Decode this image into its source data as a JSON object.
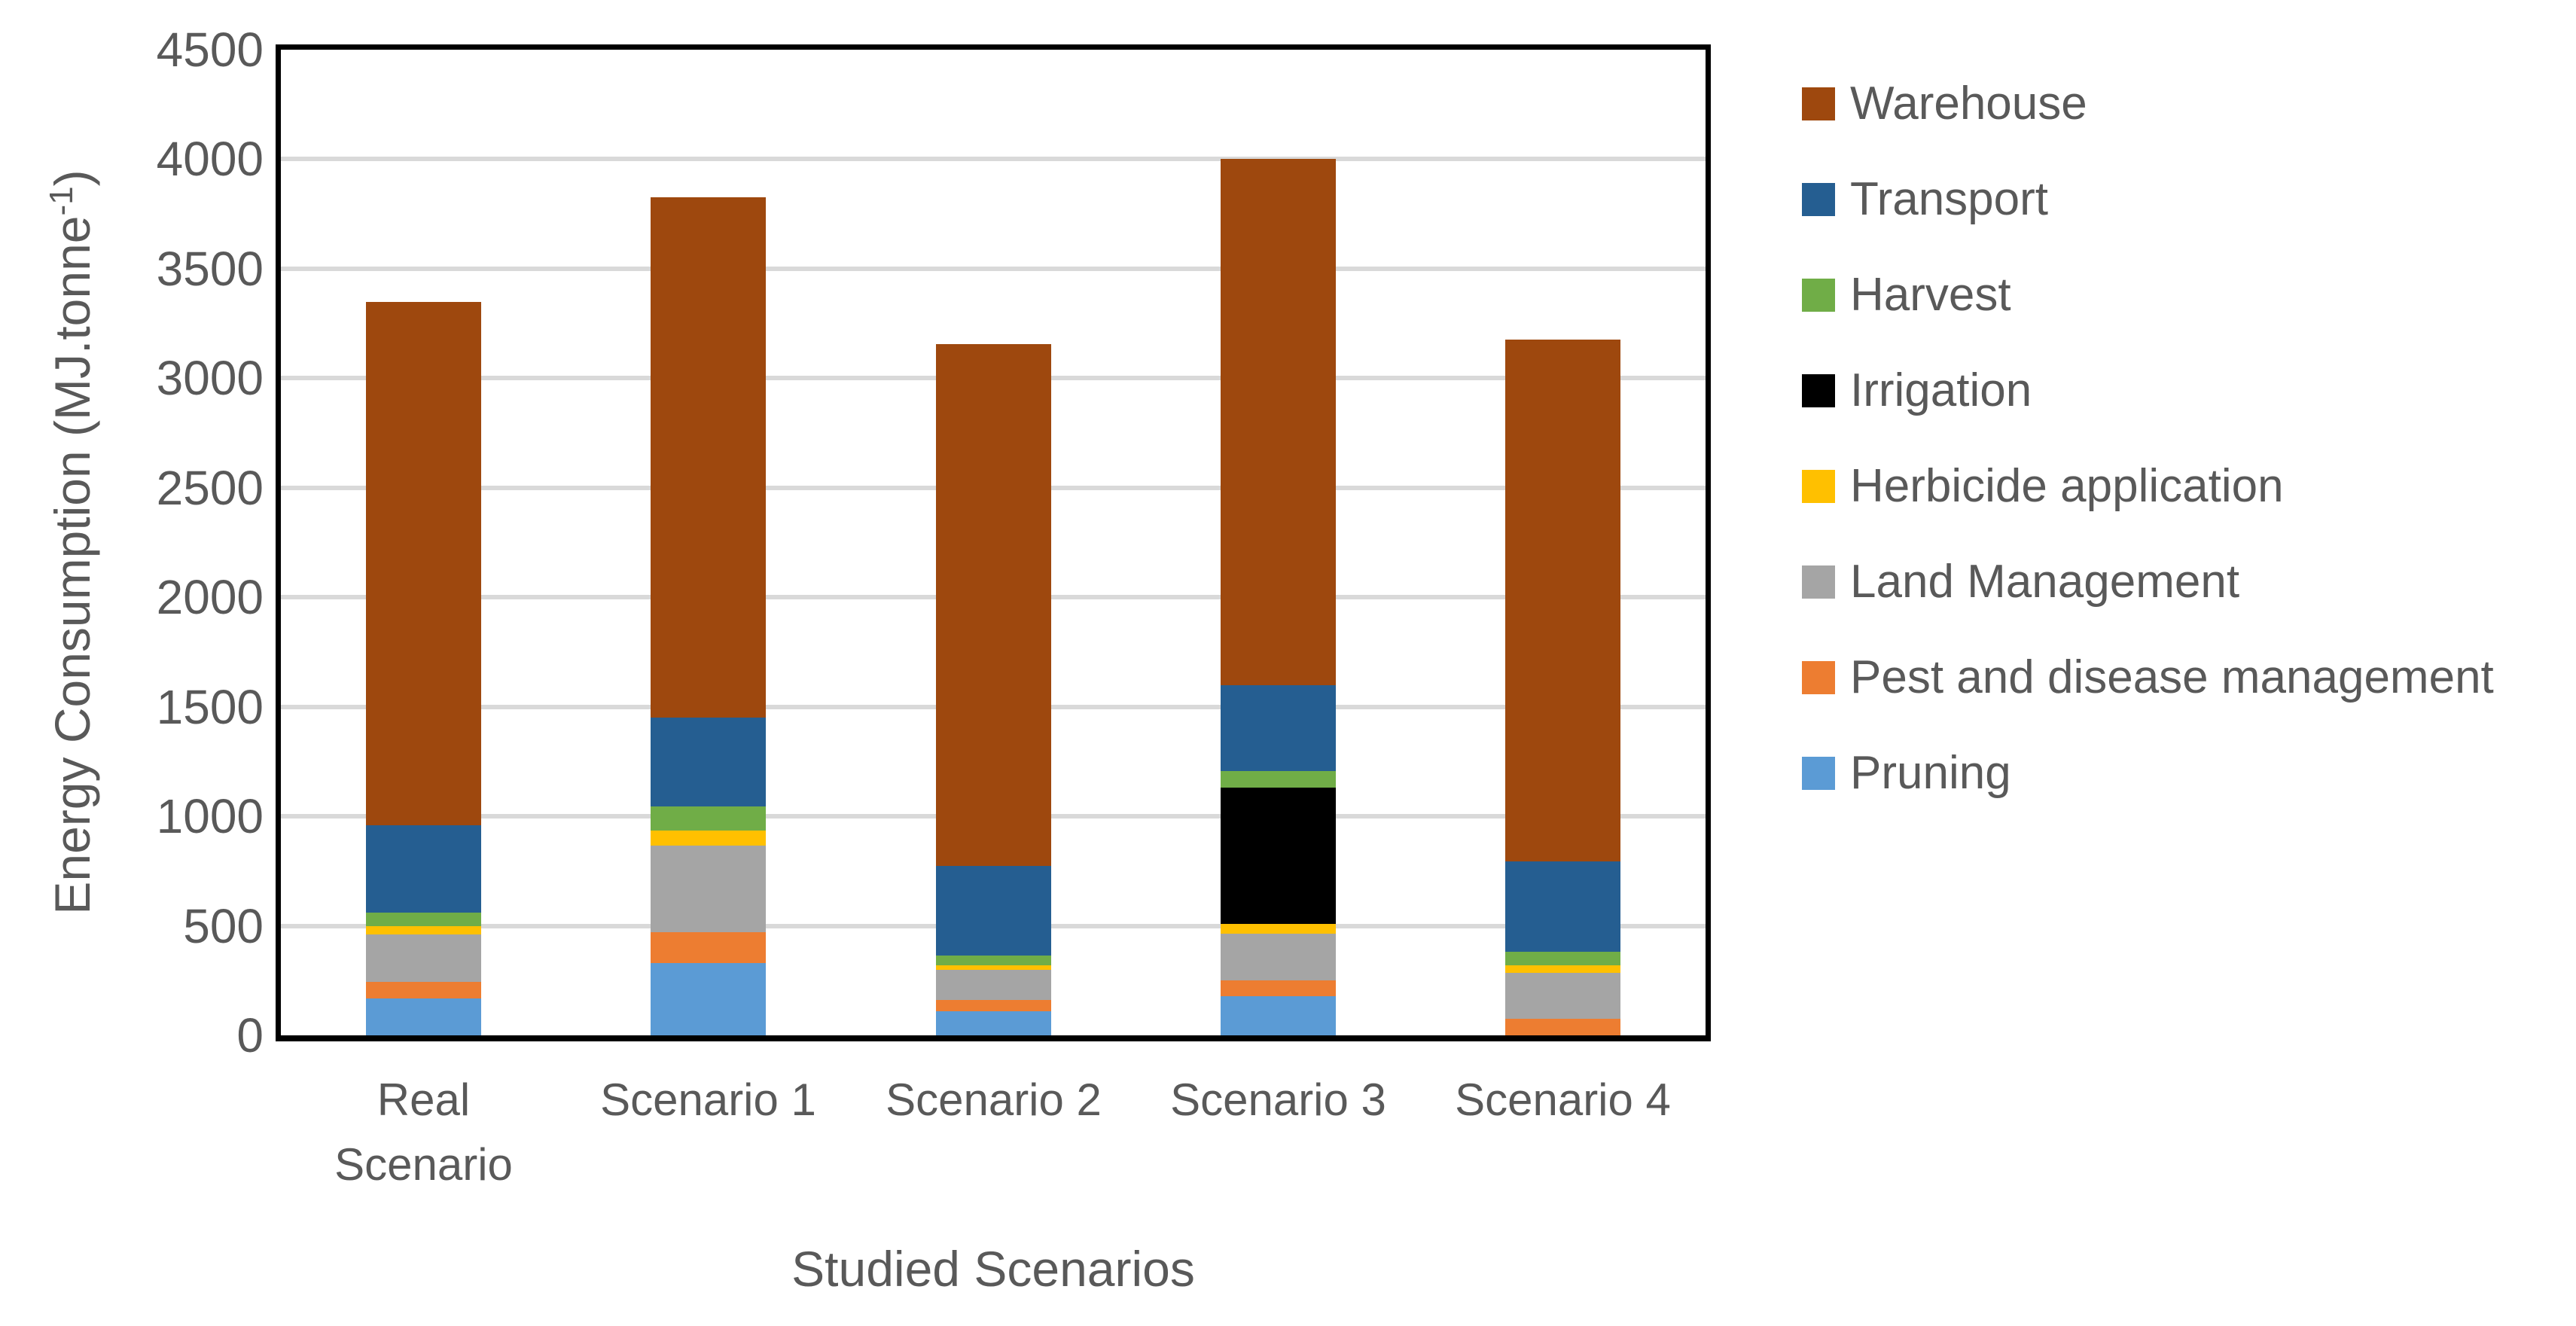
{
  "colors": {
    "background": "#FFFFFF",
    "axis_frame": "#000000",
    "gridline": "#D9D9D9",
    "text": "#595959"
  },
  "chart_data": {
    "type": "bar",
    "stacked": true,
    "title": "",
    "xlabel": "Studied Scenarios",
    "ylabel": "Energy Consumption (MJ.tonne-1)",
    "ylabel_parts": {
      "pre": "Energy Consumption (MJ.tonne",
      "sup": "-1",
      "post": ")"
    },
    "ylim": [
      0,
      4500
    ],
    "ytick_step": 500,
    "yticks": [
      0,
      500,
      1000,
      1500,
      2000,
      2500,
      3000,
      3500,
      4000,
      4500
    ],
    "grid": true,
    "legend_position": "right",
    "categories": [
      "Real Scenario",
      "Scenario 1",
      "Scenario 2",
      "Scenario 3",
      "Scenario 4"
    ],
    "series": [
      {
        "name": "Pruning",
        "color": "#5B9BD5",
        "values": [
          170,
          330,
          110,
          180,
          0
        ]
      },
      {
        "name": "Pest and disease management",
        "color": "#ED7D31",
        "values": [
          75,
          140,
          50,
          70,
          75
        ]
      },
      {
        "name": "Land Management",
        "color": "#A5A5A5",
        "values": [
          215,
          395,
          140,
          215,
          210
        ]
      },
      {
        "name": "Herbicide application",
        "color": "#FFC000",
        "values": [
          40,
          70,
          20,
          45,
          35
        ]
      },
      {
        "name": "Irrigation",
        "color": "#000000",
        "values": [
          0,
          0,
          0,
          620,
          0
        ]
      },
      {
        "name": "Harvest",
        "color": "#70AD47",
        "values": [
          60,
          110,
          45,
          75,
          60
        ]
      },
      {
        "name": "Transport",
        "color": "#255E91",
        "values": [
          400,
          405,
          410,
          395,
          415
        ]
      },
      {
        "name": "Warehouse",
        "color": "#9E480E",
        "values": [
          2390,
          2375,
          2380,
          2400,
          2380
        ]
      }
    ],
    "totals": [
      3350,
      3825,
      3155,
      4000,
      3175
    ],
    "legend_order": [
      7,
      6,
      5,
      4,
      3,
      2,
      1,
      0
    ]
  }
}
